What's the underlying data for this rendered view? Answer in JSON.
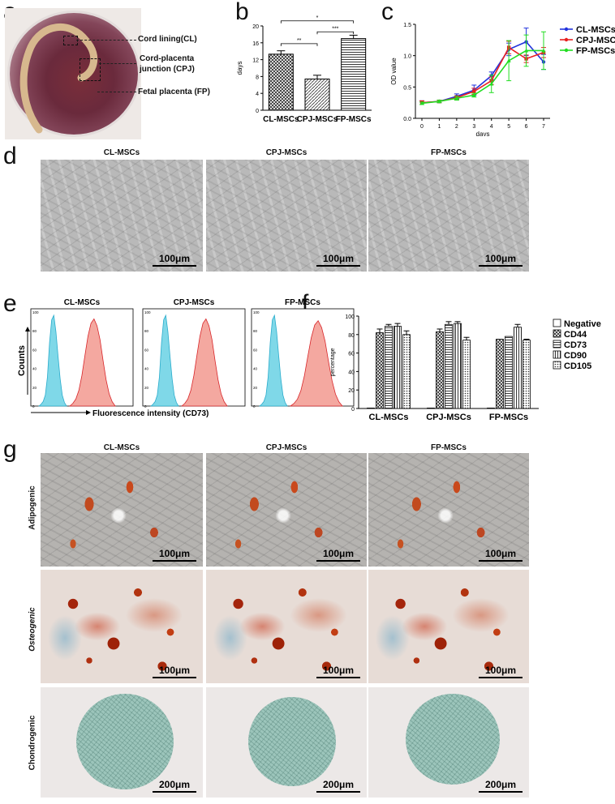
{
  "panels": {
    "a": "a",
    "b": "b",
    "c": "c",
    "d": "d",
    "e": "e",
    "f": "f",
    "g": "g"
  },
  "panel_a": {
    "annotations": [
      "Cord lining(CL)",
      "Cord-placenta",
      "junction (CPJ)",
      "Fetal placenta (FP)"
    ]
  },
  "panel_d": {
    "titles": [
      "CL-MSCs",
      "CPJ-MSCs",
      "FP-MSCs"
    ],
    "scale": "100μm"
  },
  "panel_e": {
    "titles": [
      "CL-MSCs",
      "CPJ-MSCs",
      "FP-MSCs"
    ],
    "ylabel": "Counts",
    "xlabel": "Fluorescence intensity (CD73)",
    "ticks": [
      "100",
      "80",
      "60",
      "40",
      "20",
      "0"
    ],
    "colors": {
      "negative": "#7fd8e8",
      "stained": "#f4a8a0",
      "stained_line": "#d8262a",
      "negative_line": "#2aaccc"
    }
  },
  "panel_g": {
    "titles": [
      "CL-MSCs",
      "CPJ-MSCs",
      "FP-MSCs"
    ],
    "rows": [
      "Adipogenic",
      "Osteogenic",
      "Chondrogenic"
    ],
    "scales": [
      "100μm",
      "100μm",
      "200μm"
    ]
  },
  "chart_data": [
    {
      "panel": "b",
      "type": "bar",
      "categories": [
        "CL-MSCs",
        "CPJ-MSCs",
        "FP-MSCs"
      ],
      "values": [
        13.3,
        7.4,
        17.0
      ],
      "errors": [
        0.8,
        0.9,
        0.8
      ],
      "ylabel": "days",
      "ylim": [
        0,
        20
      ],
      "yticks": [
        "0",
        "4",
        "8",
        "12",
        "16",
        "20"
      ],
      "significance": [
        {
          "pair": [
            "CL-MSCs",
            "CPJ-MSCs"
          ],
          "label": "**"
        },
        {
          "pair": [
            "CPJ-MSCs",
            "FP-MSCs"
          ],
          "label": "***"
        },
        {
          "pair": [
            "CL-MSCs",
            "FP-MSCs"
          ],
          "label": "*"
        }
      ]
    },
    {
      "panel": "c",
      "type": "line",
      "x": [
        0,
        1,
        2,
        3,
        4,
        5,
        6,
        7
      ],
      "xlabel": "days",
      "ylabel": "OD value",
      "ylim": [
        0.0,
        1.5
      ],
      "yticks": [
        "0.0",
        "0.5",
        "1.0",
        "1.5"
      ],
      "legend": "top-right",
      "series": [
        {
          "name": "CL-MSCs",
          "color": "#2233dd",
          "values": [
            0.25,
            0.27,
            0.35,
            0.45,
            0.68,
            1.1,
            1.22,
            0.9
          ],
          "errors": [
            0.03,
            0.02,
            0.04,
            0.08,
            0.06,
            0.1,
            0.22,
            0.12
          ]
        },
        {
          "name": "CPJ-MSCs",
          "color": "#e82020",
          "values": [
            0.25,
            0.27,
            0.33,
            0.43,
            0.6,
            1.13,
            0.95,
            1.05
          ],
          "errors": [
            0.03,
            0.02,
            0.03,
            0.05,
            0.06,
            0.1,
            0.06,
            0.08
          ]
        },
        {
          "name": "FP-MSCs",
          "color": "#22dd22",
          "values": [
            0.24,
            0.27,
            0.32,
            0.37,
            0.55,
            0.92,
            1.08,
            1.08
          ],
          "errors": [
            0.02,
            0.02,
            0.03,
            0.03,
            0.14,
            0.32,
            0.25,
            0.3
          ]
        }
      ]
    },
    {
      "panel": "f",
      "type": "bar",
      "categories": [
        "CL-MSCs",
        "CPJ-MSCs",
        "FP-MSCs"
      ],
      "ylabel": "percentage",
      "ylim": [
        0,
        100
      ],
      "yticks": [
        "0",
        "20",
        "40",
        "60",
        "80",
        "100"
      ],
      "legend": "right",
      "series": [
        {
          "name": "Negative",
          "values": [
            0.5,
            0.5,
            0.5
          ],
          "errors": [
            0,
            0,
            0
          ]
        },
        {
          "name": "CD44",
          "values": [
            82,
            83,
            75
          ],
          "errors": [
            4,
            3,
            0
          ]
        },
        {
          "name": "CD73",
          "values": [
            89,
            91,
            78
          ],
          "errors": [
            2,
            3,
            0
          ]
        },
        {
          "name": "CD90",
          "values": [
            89,
            92,
            88
          ],
          "errors": [
            3,
            2,
            3
          ]
        },
        {
          "name": "CD105",
          "values": [
            80,
            74,
            74
          ],
          "errors": [
            4,
            3,
            1
          ]
        }
      ]
    }
  ]
}
